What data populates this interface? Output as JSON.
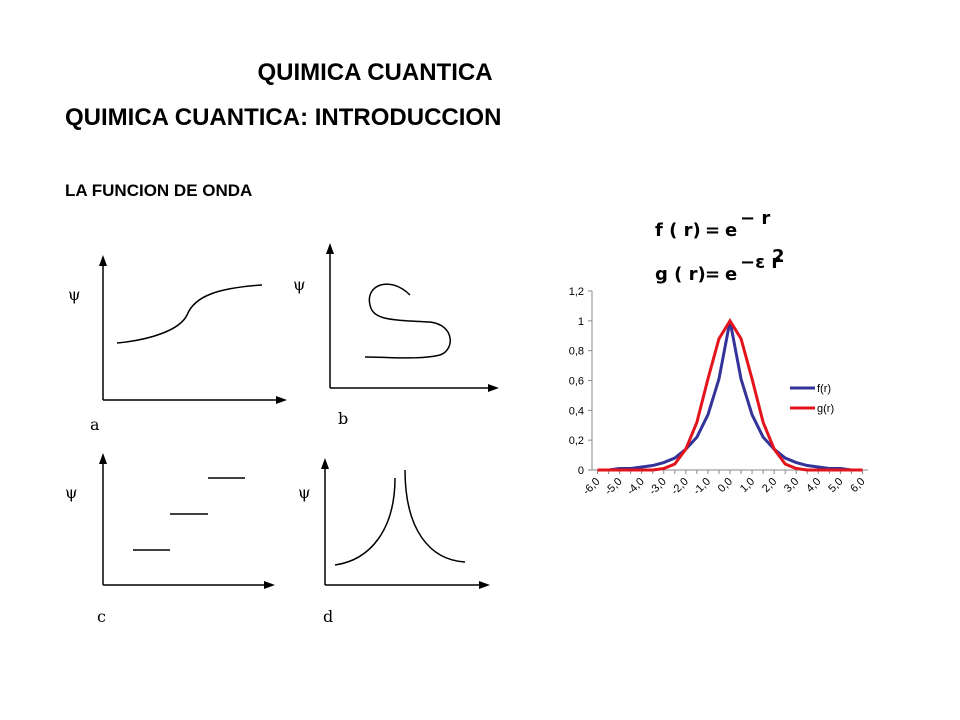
{
  "header": {
    "title": "QUIMICA CUANTICA",
    "subtitle": "QUIMICA CUANTICA: INTRODUCCION",
    "section": "LA FUNCION DE ONDA"
  },
  "sketches": [
    {
      "axis": "ψ",
      "label": "a"
    },
    {
      "axis": "ψ",
      "label": "b"
    },
    {
      "axis": "ψ",
      "label": "c"
    },
    {
      "axis": "ψ",
      "label": "d"
    }
  ],
  "formulas": [
    {
      "lhs": "f ( r)",
      "eq": "=",
      "base": "e",
      "exp": "− r"
    },
    {
      "lhs": "g ( r)",
      "eq": "=",
      "base": "e",
      "exp": "−ε r",
      "exp2": "2"
    }
  ],
  "chart_data": {
    "type": "line",
    "categories": [
      "-6,0",
      null,
      "-5,0",
      null,
      "-4,0",
      null,
      "-3,0",
      null,
      "-2,0",
      null,
      "-1,0",
      null,
      "0,0",
      null,
      "1,0",
      null,
      "2,0",
      null,
      "3,0",
      null,
      "4,0",
      null,
      "5,0",
      null,
      "6,0"
    ],
    "series": [
      {
        "name": "f(r)",
        "color": "#333399",
        "values": [
          0,
          0,
          0.01,
          0.01,
          0.02,
          0.03,
          0.05,
          0.08,
          0.14,
          0.22,
          0.37,
          0.61,
          1,
          0.61,
          0.37,
          0.22,
          0.14,
          0.08,
          0.05,
          0.03,
          0.02,
          0.01,
          0.01,
          0,
          0
        ]
      },
      {
        "name": "g(r)",
        "color": "#e3141b",
        "values": [
          0,
          0,
          0,
          0,
          0,
          0,
          0.01,
          0.04,
          0.14,
          0.32,
          0.61,
          0.88,
          1,
          0.88,
          0.61,
          0.32,
          0.14,
          0.04,
          0.01,
          0,
          0,
          0,
          0,
          0,
          0
        ]
      }
    ],
    "ylim": [
      0,
      1.2
    ],
    "yticks": [
      0,
      {
        "value": 0.2,
        "label": "0,2"
      },
      {
        "value": 0.4,
        "label": "0,4"
      },
      {
        "value": 0.6,
        "label": "0,6"
      },
      {
        "value": 0.8,
        "label": "0,8"
      },
      1,
      {
        "value": 1.2,
        "label": "1,2"
      }
    ],
    "legend": "right"
  }
}
